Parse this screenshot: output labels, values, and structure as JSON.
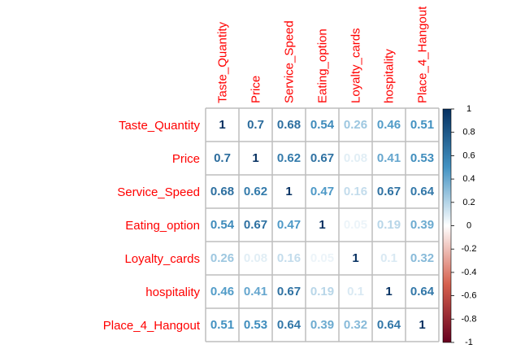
{
  "chart_data": {
    "type": "heatmap",
    "variables": [
      "Taste_Quantity",
      "Price",
      "Service_Speed",
      "Eating_option",
      "Loyalty_cards",
      "hospitality",
      "Place_4_Hangout"
    ],
    "matrix": [
      [
        1,
        0.7,
        0.68,
        0.54,
        0.26,
        0.46,
        0.51
      ],
      [
        0.7,
        1,
        0.62,
        0.67,
        0.08,
        0.41,
        0.53
      ],
      [
        0.68,
        0.62,
        1,
        0.47,
        0.16,
        0.67,
        0.64
      ],
      [
        0.54,
        0.67,
        0.47,
        1,
        0.05,
        0.19,
        0.39
      ],
      [
        0.26,
        0.08,
        0.16,
        0.05,
        1,
        0.1,
        0.32
      ],
      [
        0.46,
        0.41,
        0.67,
        0.19,
        0.1,
        1,
        0.64
      ],
      [
        0.51,
        0.53,
        0.64,
        0.39,
        0.32,
        0.64,
        1
      ]
    ],
    "color_scale": {
      "range": [
        -1,
        1
      ],
      "ticks": [
        1,
        0.8,
        0.6,
        0.4,
        0.2,
        0,
        -0.2,
        -0.4,
        -0.6,
        -0.8,
        -1
      ],
      "stops": [
        {
          "value": -1,
          "color": "#67001F"
        },
        {
          "value": -0.5,
          "color": "#D6604D"
        },
        {
          "value": 0,
          "color": "#FFFFFF"
        },
        {
          "value": 0.5,
          "color": "#4393C3"
        },
        {
          "value": 1,
          "color": "#053061"
        }
      ]
    },
    "label_color": "#FF0000",
    "grid_color": "#BEBEBE"
  }
}
